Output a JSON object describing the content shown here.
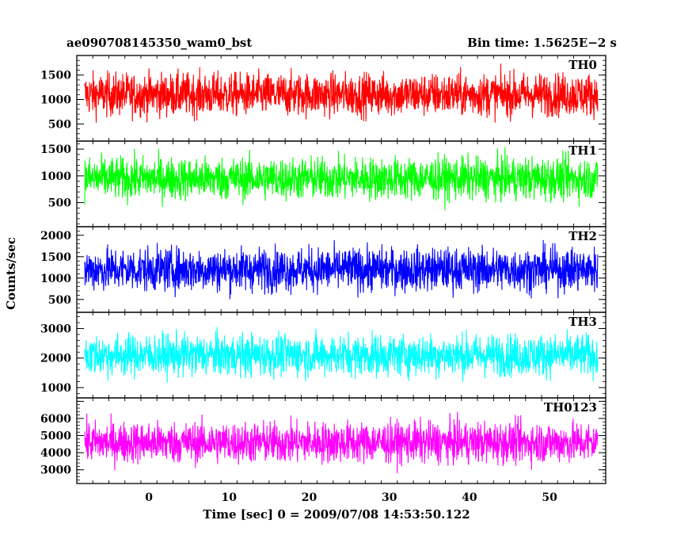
{
  "header": {
    "left_title": "ae090708145350_wam0_bst",
    "right_title": "Bin time: 1.5625E−2 s"
  },
  "chart_data": {
    "type": "line",
    "xlabel": "Time [sec] 0 = 2009/07/08 14:53:50.122",
    "ylabel": "Counts/sec",
    "xlim": [
      -9,
      57
    ],
    "xticks": [
      0,
      10,
      20,
      30,
      40,
      50
    ],
    "x_range_data": [
      -8,
      56
    ],
    "bin_time_s": 0.015625,
    "panels": [
      {
        "name": "TH0",
        "color": "#ff0000",
        "ylim": [
          150,
          1900
        ],
        "yticks": [
          500,
          1000,
          1500
        ],
        "mean": 1100,
        "low": 300,
        "high": 1900
      },
      {
        "name": "TH1",
        "color": "#00ff00",
        "ylim": [
          50,
          1650
        ],
        "yticks": [
          500,
          1000,
          1500
        ],
        "mean": 950,
        "low": 200,
        "high": 1650
      },
      {
        "name": "TH2",
        "color": "#0000ff",
        "ylim": [
          200,
          2200
        ],
        "yticks": [
          500,
          1000,
          1500,
          2000
        ],
        "mean": 1200,
        "low": 350,
        "high": 2200
      },
      {
        "name": "TH3",
        "color": "#00ffff",
        "ylim": [
          650,
          3550
        ],
        "yticks": [
          1000,
          2000,
          3000
        ],
        "mean": 2100,
        "low": 850,
        "high": 3450
      },
      {
        "name": "TH0123",
        "color": "#ff00ff",
        "ylim": [
          2200,
          7200
        ],
        "yticks": [
          3000,
          4000,
          5000,
          6000,
          7000
        ],
        "mean": 4600,
        "low": 2600,
        "high": 7000
      }
    ]
  }
}
